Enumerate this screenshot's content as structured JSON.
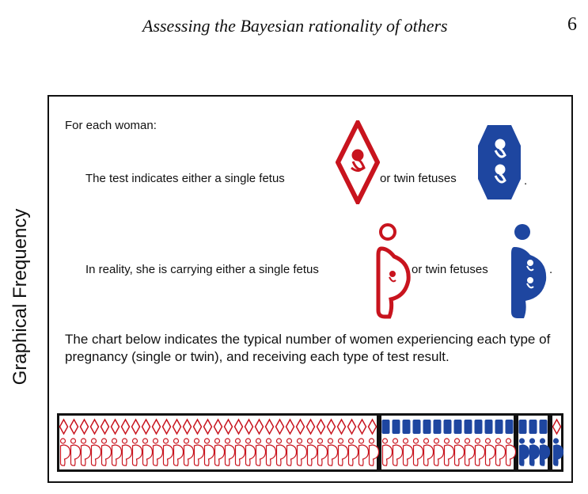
{
  "header": {
    "running_title": "Assessing the Bayesian rationality of others",
    "page_number": "6"
  },
  "side_label": "Graphical Frequency",
  "figure": {
    "intro": "For each woman:",
    "test_line": {
      "text_before": "The test indicates either a single fetus",
      "text_middle": "or twin fetuses",
      "text_end": "."
    },
    "reality_line": {
      "text_before": "In reality, she is carrying either a single fetus",
      "text_middle": "or twin fetuses",
      "text_end": "."
    },
    "chart_description": "The chart below indicates the typical number of women experiencing each type of pregnancy (single or twin), and receiving each type of test result.",
    "colors": {
      "single": "#c8141e",
      "twin": "#1e46a0",
      "frame": "#111111"
    }
  },
  "chart_data": {
    "type": "table",
    "groups": [
      {
        "test_result": "single",
        "actual": "single",
        "count": 31
      },
      {
        "test_result": "twin",
        "actual": "single",
        "count": 13
      },
      {
        "test_result": "twin",
        "actual": "twin",
        "count": 3
      },
      {
        "test_result": "single",
        "actual": "twin",
        "count": 1
      }
    ]
  }
}
